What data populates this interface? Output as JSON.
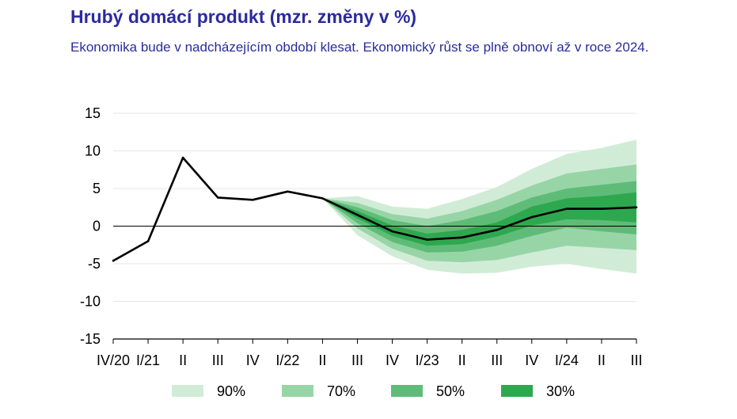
{
  "chart_data": {
    "type": "line",
    "title": "Hrubý domácí produkt (mzr. změny v %)",
    "subtitle": "Ekonomika bude v nadcházejícím období klesat. Ekonomický růst se plně obnoví až v roce 2024.",
    "categories": [
      "IV/20",
      "I/21",
      "II",
      "III",
      "IV",
      "I/22",
      "II",
      "III",
      "IV",
      "I/23",
      "II",
      "III",
      "IV",
      "I/24",
      "II",
      "III"
    ],
    "ylim": [
      -15,
      15
    ],
    "yticks": [
      15,
      10,
      5,
      0,
      -5,
      -10,
      -15
    ],
    "series": [
      {
        "values": [
          -4.6,
          -2.0,
          9.1,
          3.8,
          3.5,
          4.6,
          3.7,
          1.5,
          -0.7,
          -1.8,
          -1.5,
          -0.5,
          1.2,
          2.3,
          2.3,
          2.5
        ]
      }
    ],
    "fan": {
      "start_index": 6,
      "bands": [
        {
          "name": "90%",
          "color": "#d1ecd6",
          "lower": [
            3.7,
            -1.2,
            -4.0,
            -5.8,
            -6.3,
            -6.2,
            -5.4,
            -5.0,
            -5.7,
            -6.3
          ],
          "upper": [
            3.7,
            4.0,
            2.6,
            2.3,
            3.6,
            5.2,
            7.6,
            9.6,
            10.4,
            11.5
          ]
        },
        {
          "name": "70%",
          "color": "#98d5a6",
          "lower": [
            3.7,
            -0.3,
            -3.0,
            -4.6,
            -4.8,
            -4.5,
            -3.5,
            -2.6,
            -2.9,
            -3.2
          ],
          "upper": [
            3.7,
            3.1,
            1.6,
            1.0,
            2.0,
            3.5,
            5.4,
            7.0,
            7.6,
            8.2
          ]
        },
        {
          "name": "50%",
          "color": "#5fbc78",
          "lower": [
            3.7,
            0.4,
            -2.1,
            -3.5,
            -3.4,
            -2.6,
            -1.3,
            -0.2,
            -0.7,
            -1.1
          ],
          "upper": [
            3.7,
            2.5,
            0.8,
            0.0,
            0.8,
            2.0,
            3.8,
            5.0,
            5.5,
            6.0
          ]
        },
        {
          "name": "30%",
          "color": "#2ea84f",
          "lower": [
            3.7,
            1.0,
            -1.3,
            -2.6,
            -2.4,
            -1.4,
            0.1,
            0.9,
            0.8,
            0.5
          ],
          "upper": [
            3.7,
            2.0,
            0.1,
            -1.0,
            -0.5,
            0.5,
            2.6,
            3.7,
            4.0,
            4.5
          ]
        }
      ]
    },
    "legend": {
      "position": "bottom",
      "labels": [
        "90%",
        "70%",
        "50%",
        "30%"
      ]
    },
    "grid": true
  },
  "colors": {
    "title": "#2b2b9e",
    "line": "#000000",
    "grid": "#e6e6e6"
  }
}
